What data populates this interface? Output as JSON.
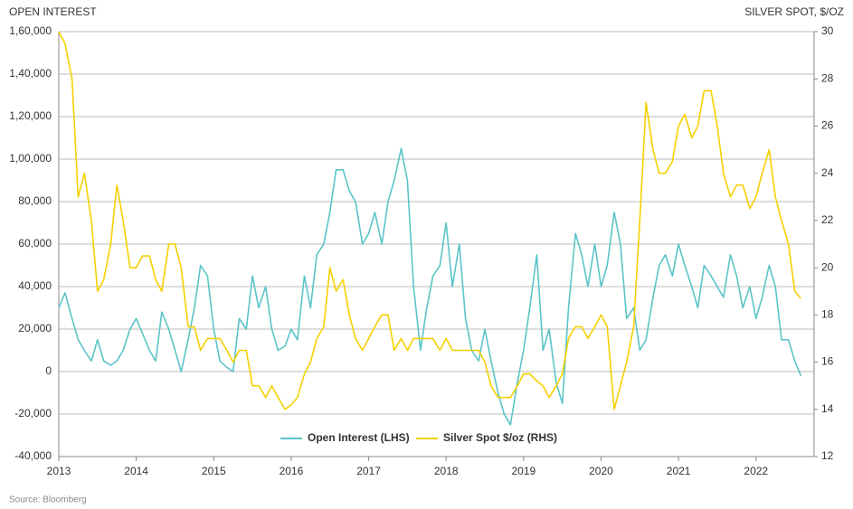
{
  "chart_data": {
    "type": "line",
    "y_label": "OPEN INTEREST",
    "y2_label": "SILVER SPOT, $/OZ",
    "source": "Source: Bloomberg",
    "x": [
      2013.0,
      2013.08,
      2013.17,
      2013.25,
      2013.33,
      2013.42,
      2013.5,
      2013.58,
      2013.67,
      2013.75,
      2013.83,
      2013.92,
      2014.0,
      2014.08,
      2014.17,
      2014.25,
      2014.33,
      2014.42,
      2014.5,
      2014.58,
      2014.67,
      2014.75,
      2014.83,
      2014.92,
      2015.0,
      2015.08,
      2015.17,
      2015.25,
      2015.33,
      2015.42,
      2015.5,
      2015.58,
      2015.67,
      2015.75,
      2015.83,
      2015.92,
      2016.0,
      2016.08,
      2016.17,
      2016.25,
      2016.33,
      2016.42,
      2016.5,
      2016.58,
      2016.67,
      2016.75,
      2016.83,
      2016.92,
      2017.0,
      2017.08,
      2017.17,
      2017.25,
      2017.33,
      2017.42,
      2017.5,
      2017.58,
      2017.67,
      2017.75,
      2017.83,
      2017.92,
      2018.0,
      2018.08,
      2018.17,
      2018.25,
      2018.33,
      2018.42,
      2018.5,
      2018.58,
      2018.67,
      2018.75,
      2018.83,
      2018.92,
      2019.0,
      2019.08,
      2019.17,
      2019.25,
      2019.33,
      2019.42,
      2019.5,
      2019.58,
      2019.67,
      2019.75,
      2019.83,
      2019.92,
      2020.0,
      2020.08,
      2020.17,
      2020.25,
      2020.33,
      2020.42,
      2020.5,
      2020.58,
      2020.67,
      2020.75,
      2020.83,
      2020.92,
      2021.0,
      2021.08,
      2021.17,
      2021.25,
      2021.33,
      2021.42,
      2021.5,
      2021.58,
      2021.67,
      2021.75,
      2021.83,
      2021.92,
      2022.0,
      2022.08,
      2022.17,
      2022.25,
      2022.33,
      2022.42,
      2022.5,
      2022.58
    ],
    "series": [
      {
        "name": "Open Interest (LHS)",
        "color": "#5bc4c8",
        "values": [
          30000,
          37000,
          25000,
          15000,
          10000,
          5000,
          15000,
          5000,
          3000,
          5000,
          10000,
          20000,
          25000,
          18000,
          10000,
          5000,
          28000,
          20000,
          10000,
          0,
          15000,
          30000,
          50000,
          45000,
          20000,
          5000,
          2000,
          0,
          25000,
          20000,
          45000,
          30000,
          40000,
          20000,
          10000,
          12000,
          20000,
          15000,
          45000,
          30000,
          55000,
          60000,
          75000,
          95000,
          95000,
          85000,
          80000,
          60000,
          65000,
          75000,
          60000,
          80000,
          90000,
          105000,
          90000,
          40000,
          10000,
          30000,
          45000,
          50000,
          70000,
          40000,
          60000,
          25000,
          10000,
          5000,
          20000,
          5000,
          -10000,
          -20000,
          -25000,
          -5000,
          10000,
          30000,
          55000,
          10000,
          20000,
          -5000,
          -15000,
          30000,
          65000,
          55000,
          40000,
          60000,
          40000,
          50000,
          75000,
          60000,
          25000,
          30000,
          10000,
          15000,
          35000,
          50000,
          55000,
          45000,
          60000,
          50000,
          40000,
          30000,
          50000,
          45000,
          40000,
          35000,
          55000,
          45000,
          30000,
          40000,
          25000,
          35000,
          50000,
          40000,
          15000,
          15000,
          5000,
          -2000
        ]
      },
      {
        "name": "Silver Spot $/oz (RHS)",
        "color": "#f5d000",
        "axis": "y2",
        "values": [
          30,
          29.5,
          28,
          23,
          24,
          22,
          19,
          19.5,
          21,
          23.5,
          22,
          20,
          20,
          20.5,
          20.5,
          19.5,
          19,
          21,
          21,
          20,
          17.5,
          17.5,
          16.5,
          17,
          17,
          17,
          16.5,
          16,
          16.5,
          16.5,
          15,
          15,
          14.5,
          15,
          14.5,
          14,
          14.2,
          14.5,
          15.5,
          16,
          17,
          17.5,
          20,
          19,
          19.5,
          18,
          17,
          16.5,
          17,
          17.5,
          18,
          18,
          16.5,
          17,
          16.5,
          17,
          17,
          17,
          17,
          16.5,
          17,
          16.5,
          16.5,
          16.5,
          16.5,
          16.5,
          16,
          15,
          14.5,
          14.5,
          14.5,
          15,
          15.5,
          15.5,
          15.2,
          15,
          14.5,
          15,
          15.5,
          17,
          17.5,
          17.5,
          17,
          17.5,
          18,
          17.5,
          14,
          15,
          16,
          17.5,
          22,
          27,
          25,
          24,
          24,
          24.5,
          26,
          26.5,
          25.5,
          26,
          27.5,
          27.5,
          26,
          24,
          23,
          23.5,
          23.5,
          22.5,
          23,
          24,
          25,
          23,
          22,
          21,
          19,
          18.7
        ]
      }
    ],
    "xlim": [
      2013,
      2022.75
    ],
    "xticks": [
      2013,
      2014,
      2015,
      2016,
      2017,
      2018,
      2019,
      2020,
      2021,
      2022
    ],
    "ylim": [
      -40000,
      160000
    ],
    "yticks": [
      {
        "value": -40000,
        "label": "-40,000"
      },
      {
        "value": -20000,
        "label": "-20,000"
      },
      0,
      {
        "value": 20000,
        "label": "20,000"
      },
      {
        "value": 40000,
        "label": "40,000"
      },
      {
        "value": 60000,
        "label": "60,000"
      },
      {
        "value": 80000,
        "label": "80,000"
      },
      {
        "value": 100000,
        "label": "1,00,000"
      },
      {
        "value": 120000,
        "label": "1,20,000"
      },
      {
        "value": 140000,
        "label": "1,40,000"
      },
      {
        "value": 160000,
        "label": "1,60,000"
      }
    ],
    "y2lim": [
      12,
      30
    ],
    "y2ticks": [
      12,
      14,
      16,
      18,
      20,
      22,
      24,
      26,
      28,
      30
    ],
    "grid": true,
    "legend": "bottom"
  }
}
